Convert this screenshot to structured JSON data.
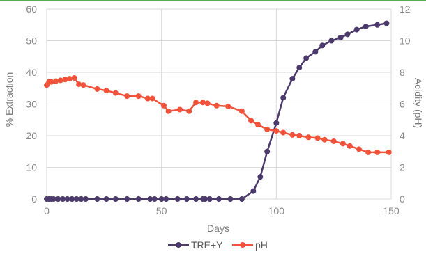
{
  "colors": {
    "top_rule": "#52b04a",
    "grid": "#d9d9d9",
    "tre_y": "#4b3a6b",
    "ph": "#f0533a"
  },
  "chart_data": {
    "type": "line",
    "xlabel": "Days",
    "ylabel_left": "% Extraction",
    "ylabel_right": "Acidity (pH)",
    "xlim": [
      0,
      150
    ],
    "ylim_left": [
      0,
      60
    ],
    "ylim_right": [
      0,
      12
    ],
    "x_ticks": [
      0,
      50,
      100,
      150
    ],
    "y_left_ticks": [
      0,
      10,
      20,
      30,
      40,
      50,
      60
    ],
    "y_right_ticks": [
      0,
      2,
      4,
      6,
      8,
      10,
      12
    ],
    "grid": "vertical and horizontal",
    "legend_position": "bottom-center",
    "series": [
      {
        "name": "TRE+Y",
        "axis": "left",
        "color": "#4b3a6b",
        "x": [
          0,
          1,
          2,
          3,
          5,
          7,
          9,
          11,
          13,
          15,
          17,
          22,
          26,
          30,
          35,
          40,
          45,
          47,
          50,
          52,
          57,
          61,
          65,
          68,
          69,
          71,
          75,
          80,
          85,
          90,
          93,
          96,
          100,
          103,
          107,
          110,
          113,
          117,
          120,
          124,
          128,
          131,
          135,
          139,
          144,
          148
        ],
        "values": [
          0,
          0,
          0,
          0,
          0,
          0,
          0,
          0,
          0,
          0,
          0,
          0,
          0,
          0,
          0,
          0,
          0,
          0,
          0,
          0,
          0,
          0,
          0,
          0,
          0,
          0,
          0,
          0,
          0,
          2.5,
          7,
          15,
          24,
          32,
          38,
          41.5,
          44.5,
          46.5,
          48.5,
          50,
          51,
          52,
          53.5,
          54.5,
          55,
          55.5
        ]
      },
      {
        "name": "pH",
        "axis": "right",
        "color": "#f0533a",
        "x": [
          0,
          1,
          2,
          4,
          6,
          8,
          10,
          12,
          14,
          16,
          22,
          26,
          30,
          35,
          40,
          44,
          46,
          51,
          53,
          58,
          62,
          65,
          68,
          70,
          74,
          79,
          85,
          89,
          92,
          96,
          100,
          103,
          107,
          110,
          114,
          118,
          121,
          125,
          129,
          132,
          136,
          140,
          144,
          149
        ],
        "values": [
          7.2,
          7.4,
          7.4,
          7.45,
          7.5,
          7.55,
          7.6,
          7.65,
          7.25,
          7.2,
          6.95,
          6.85,
          6.7,
          6.5,
          6.5,
          6.35,
          6.35,
          5.9,
          5.55,
          5.65,
          5.55,
          6.1,
          6.1,
          6.05,
          5.9,
          5.85,
          5.55,
          4.95,
          4.7,
          4.4,
          4.3,
          4.2,
          4.05,
          4.0,
          3.9,
          3.85,
          3.75,
          3.65,
          3.5,
          3.35,
          3.15,
          2.95,
          2.95,
          2.95
        ]
      }
    ]
  }
}
